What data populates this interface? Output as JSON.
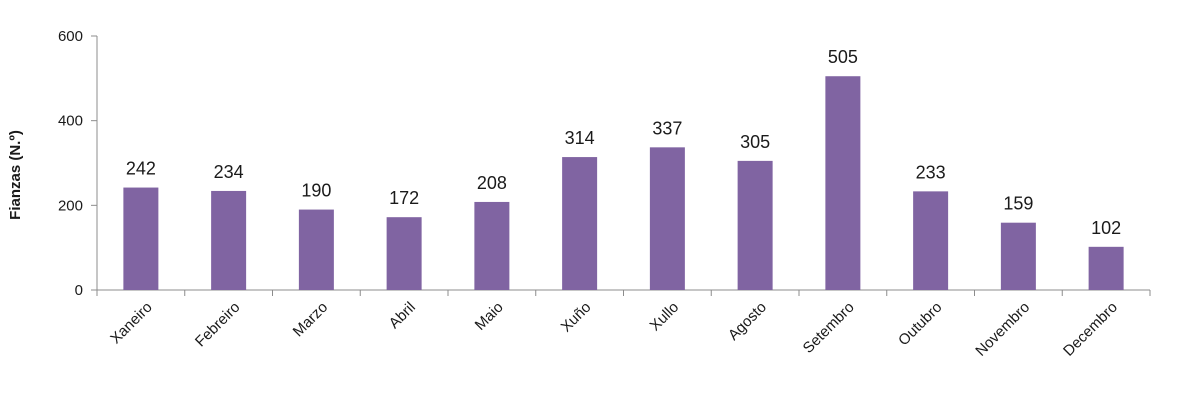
{
  "chart_data": {
    "type": "bar",
    "categories": [
      "Xaneiro",
      "Febreiro",
      "Marzo",
      "Abril",
      "Maio",
      "Xuño",
      "Xullo",
      "Agosto",
      "Setembro",
      "Outubro",
      "Novembro",
      "Decembro"
    ],
    "values": [
      242,
      234,
      190,
      172,
      208,
      314,
      337,
      305,
      505,
      233,
      159,
      102
    ],
    "data_labels": [
      "242",
      "234",
      "190",
      "172",
      "208",
      "314",
      "337",
      "305",
      "505",
      "233",
      "159",
      "102"
    ],
    "title": "",
    "xlabel": "",
    "ylabel": "Fianzas (N.º)",
    "ylim": [
      0,
      600
    ],
    "yticks": [
      0,
      200,
      400,
      600
    ],
    "ytick_labels": [
      "0",
      "200",
      "400",
      "600"
    ],
    "grid": false,
    "legend": "none",
    "bar_color": "#8064a2",
    "axis_color": "#8c8c8c"
  }
}
